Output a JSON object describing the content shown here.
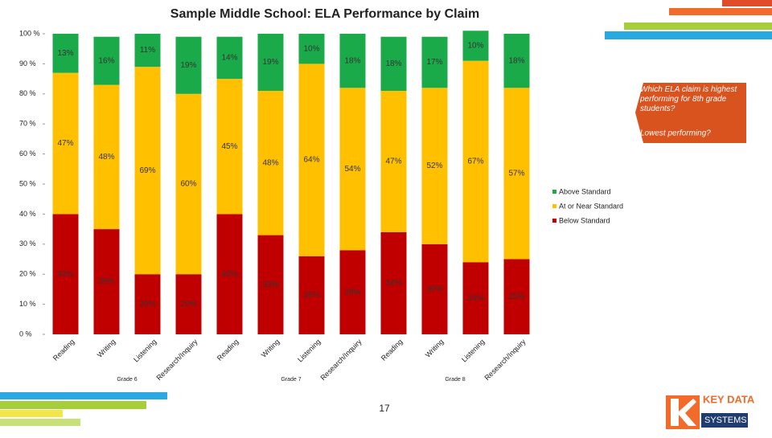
{
  "chart_data": {
    "type": "bar",
    "stacked": true,
    "title": "Sample Middle School:  ELA Performance by Claim",
    "categories": [
      "Reading",
      "Writing",
      "Listening",
      "Research/Inquiry",
      "Reading",
      "Writing",
      "Listening",
      "Research/Inquiry",
      "Reading",
      "Writing",
      "Listening",
      "Research/Inquiry"
    ],
    "groups": [
      "Grade 6",
      "Grade 7",
      "Grade 8"
    ],
    "series": [
      {
        "name": "Below Standard",
        "color": "#c00000",
        "values": [
          40,
          35,
          20,
          20,
          40,
          33,
          26,
          28,
          34,
          30,
          24,
          25
        ],
        "value_labels": [
          "40%",
          "35%",
          "20%",
          "20%",
          "40%",
          "33%",
          "26%",
          "28%",
          "34%",
          "30%",
          "24%",
          "25%"
        ]
      },
      {
        "name": "At or Near Standard",
        "color": "#ffc000",
        "values": [
          47,
          48,
          69,
          60,
          45,
          48,
          64,
          54,
          47,
          52,
          67,
          57
        ],
        "value_labels": [
          "47%",
          "48%",
          "69%",
          "60%",
          "45%",
          "48%",
          "64%",
          "54%",
          "47%",
          "52%",
          "67%",
          "57%"
        ]
      },
      {
        "name": "Above Standard",
        "color": "#1aaa4a",
        "values": [
          13,
          16,
          11,
          19,
          14,
          19,
          10,
          18,
          18,
          17,
          10,
          18
        ],
        "value_labels": [
          "13%",
          "16%",
          "11%",
          "19%",
          "14%",
          "19%",
          "10%",
          "18%",
          "18%",
          "17%",
          "10%",
          "18%"
        ]
      }
    ],
    "ylim": [
      0,
      100
    ],
    "yticks": [
      {
        "value": 0,
        "label": "0 %"
      },
      {
        "value": 10,
        "label": "10 %"
      },
      {
        "value": 20,
        "label": "20 %"
      },
      {
        "value": 30,
        "label": "30 %"
      },
      {
        "value": 40,
        "label": "40 %"
      },
      {
        "value": 50,
        "label": "50 %"
      },
      {
        "value": 60,
        "label": "60 %"
      },
      {
        "value": 70,
        "label": "70 %"
      },
      {
        "value": 80,
        "label": "80 %"
      },
      {
        "value": 90,
        "label": "90 %"
      },
      {
        "value": 100,
        "label": "100 %"
      }
    ],
    "legend": "right"
  },
  "callout": {
    "question": "Which ELA claim is highest performing for 8th grade students?",
    "followup": "Lowest performing?"
  },
  "page_number": "17",
  "logo": {
    "top": "KEY DATA",
    "bottom": "SYSTEMS"
  }
}
